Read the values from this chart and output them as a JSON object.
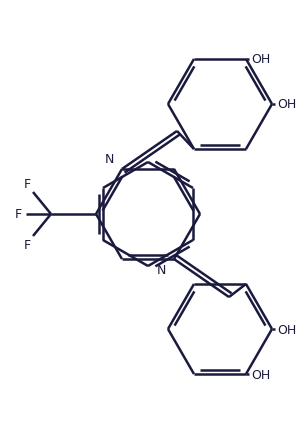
{
  "line_color": "#1a1a3e",
  "line_width": 1.8,
  "background_color": "#ffffff",
  "text_color": "#1a1a3e",
  "font_size": 9,
  "figsize": [
    3.04,
    4.31
  ],
  "dpi": 100,
  "xlim": [
    0,
    304
  ],
  "ylim": [
    0,
    431
  ]
}
